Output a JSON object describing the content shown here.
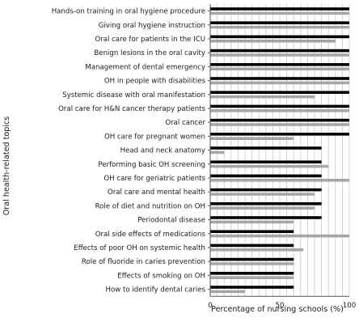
{
  "chart_data": {
    "type": "bar",
    "orientation": "horizontal",
    "ylabel": "Oral health-related topics",
    "xlabel": "Percentage of nursing schools (%)",
    "xlim": [
      0,
      100
    ],
    "xticks": [
      0,
      50,
      100
    ],
    "grid": true,
    "legend": "none",
    "categories": [
      "Hands-on training in oral hygiene procedure",
      "Giving oral hygiene instruction",
      "Oral care for patients in the ICU",
      "Benign lesions in the oral cavity",
      "Management of dental emergency",
      "OH in people with disabilities",
      "Systemic disease with oral manifestation",
      "Oral care for H&N cancer therapy patients",
      "Oral cancer",
      "OH care for pregnant women",
      "Head and neck anatomy",
      "Performing basic OH screening",
      "OH care for geriatric patients",
      "Oral care and mental health",
      "Role of diet and nutrition on OH",
      "Periodontal disease",
      "Oral side effects of medications",
      "Effects of poor OH on systemic health",
      "Role of fluoride in caries prevention",
      "Effects of smoking on OH",
      "How to identify dental caries"
    ],
    "series": [
      {
        "color": "#000000",
        "values": [
          100,
          100,
          100,
          100,
          100,
          100,
          100,
          100,
          100,
          100,
          80,
          80,
          80,
          80,
          80,
          80,
          60,
          60,
          60,
          60,
          60
        ]
      },
      {
        "color": "#a6a6a6",
        "values": [
          100,
          100,
          90,
          100,
          100,
          100,
          75,
          100,
          100,
          60,
          10,
          85,
          100,
          75,
          75,
          60,
          100,
          67,
          60,
          60,
          25
        ]
      }
    ]
  }
}
